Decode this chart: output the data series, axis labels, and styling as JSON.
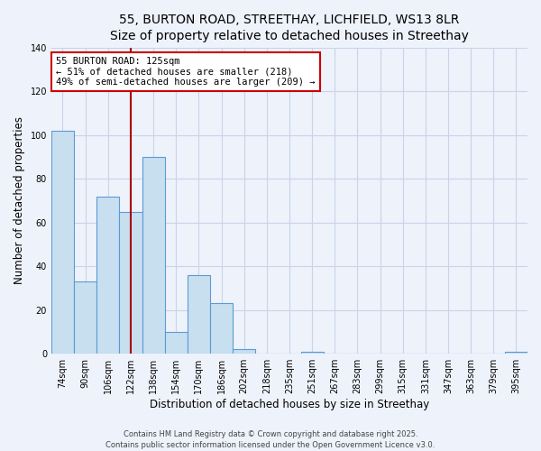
{
  "title": "55, BURTON ROAD, STREETHAY, LICHFIELD, WS13 8LR",
  "subtitle": "Size of property relative to detached houses in Streethay",
  "xlabel": "Distribution of detached houses by size in Streethay",
  "ylabel": "Number of detached properties",
  "bar_labels": [
    "74sqm",
    "90sqm",
    "106sqm",
    "122sqm",
    "138sqm",
    "154sqm",
    "170sqm",
    "186sqm",
    "202sqm",
    "218sqm",
    "235sqm",
    "251sqm",
    "267sqm",
    "283sqm",
    "299sqm",
    "315sqm",
    "331sqm",
    "347sqm",
    "363sqm",
    "379sqm",
    "395sqm"
  ],
  "bar_values": [
    102,
    33,
    72,
    65,
    90,
    10,
    36,
    23,
    2,
    0,
    0,
    1,
    0,
    0,
    0,
    0,
    0,
    0,
    0,
    0,
    1
  ],
  "bar_color": "#c8dff0",
  "bar_edge_color": "#5b9bd5",
  "vline_x": 3.0,
  "vline_color": "#aa0000",
  "annotation_title": "55 BURTON ROAD: 125sqm",
  "annotation_line1": "← 51% of detached houses are smaller (218)",
  "annotation_line2": "49% of semi-detached houses are larger (209) →",
  "annotation_box_facecolor": "#ffffff",
  "annotation_box_edgecolor": "#cc0000",
  "ylim": [
    0,
    140
  ],
  "yticks": [
    0,
    20,
    40,
    60,
    80,
    100,
    120,
    140
  ],
  "footer1": "Contains HM Land Registry data © Crown copyright and database right 2025.",
  "footer2": "Contains public sector information licensed under the Open Government Licence v3.0.",
  "background_color": "#eef2fb",
  "grid_color": "#c8d4e8",
  "title_fontsize": 10,
  "axis_label_fontsize": 8.5,
  "tick_fontsize": 7,
  "annotation_fontsize": 7.5,
  "footer_fontsize": 6
}
